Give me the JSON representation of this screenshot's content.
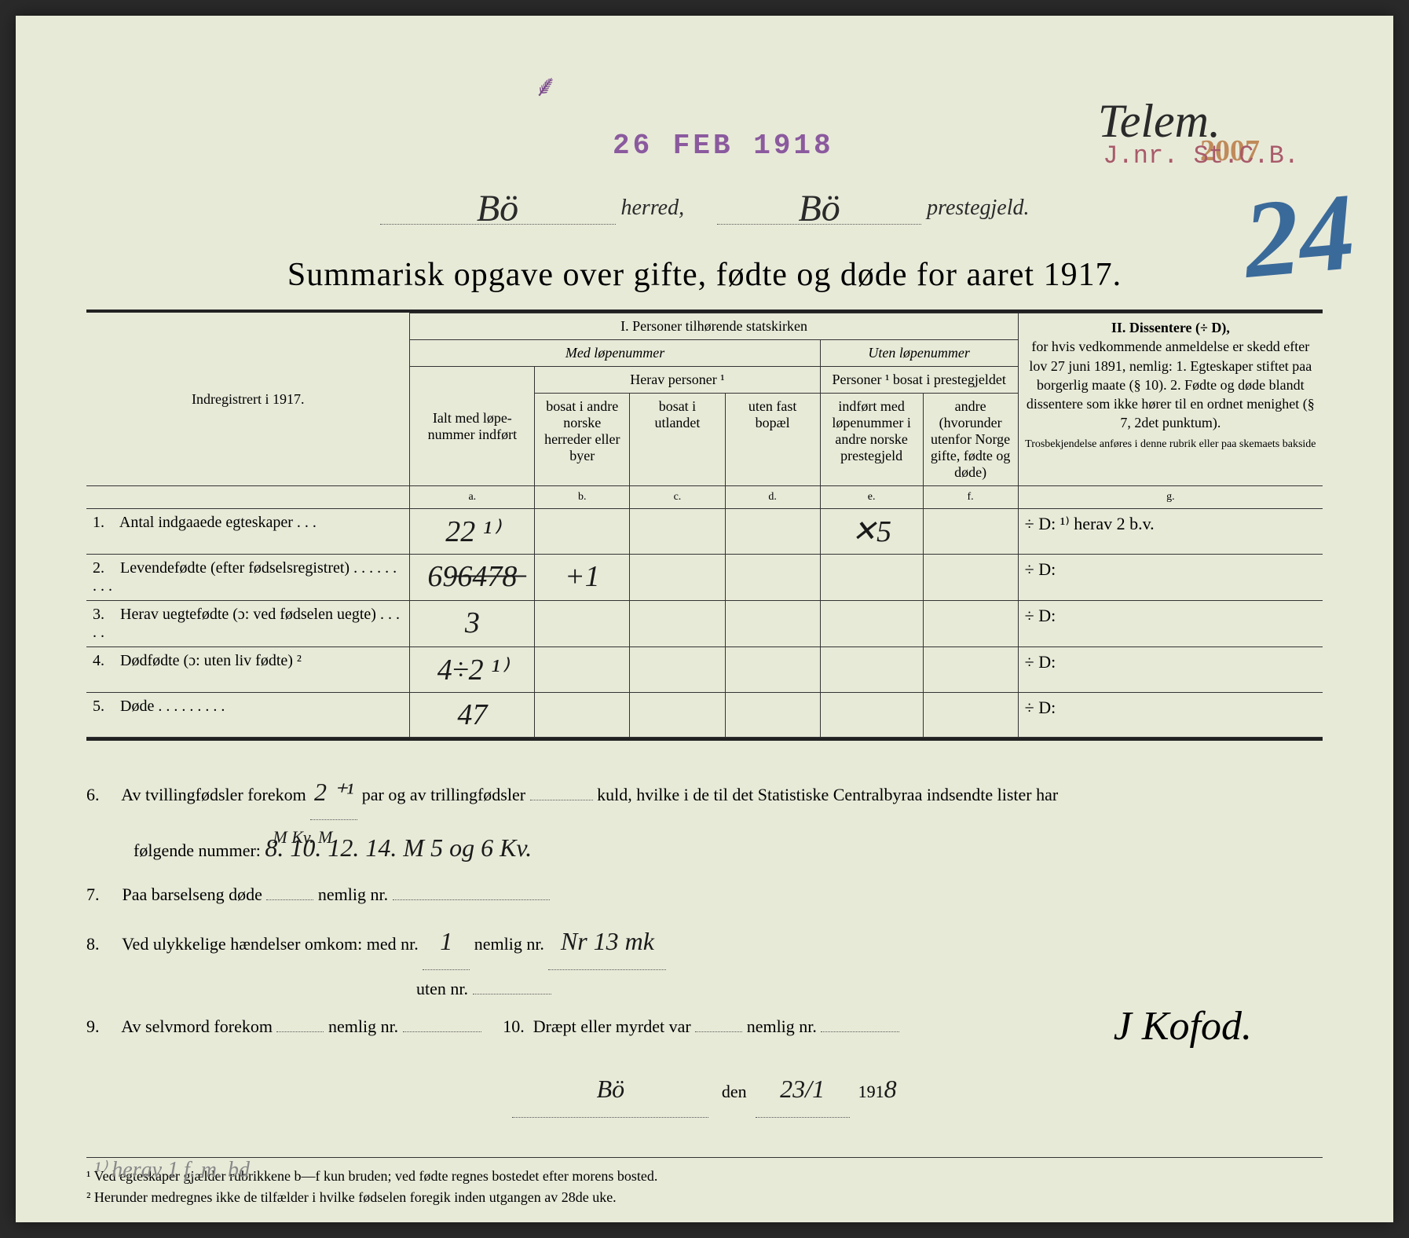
{
  "stamps": {
    "date": "26 FEB 1918",
    "jnr": "J.nr. St.C.B.",
    "num2007": "2007",
    "big_number": "24",
    "purple_mark": "⸙"
  },
  "handwriting": {
    "telem": "Telem.",
    "herred": "Bö",
    "prestegjeld": "Bö"
  },
  "header": {
    "herred_label": "herred,",
    "prestegjeld_label": "prestegjeld."
  },
  "title": "Summarisk opgave over gifte, fødte og døde for aaret 1917.",
  "table": {
    "section1": "I.  Personer tilhørende statskirken",
    "section2_title": "II.  Dissentere (÷ D),",
    "med_lope": "Med løpenummer",
    "uten_lope": "Uten løpenummer",
    "herav_personer": "Herav personer ¹",
    "personer_bosat": "Personer ¹ bosat i prestegjeldet",
    "indregistrert": "Indregistrert i 1917.",
    "ialt": "Ialt med løpe-nummer indført",
    "col_b": "bosat i andre norske herreder eller byer",
    "col_c": "bosat i utlandet",
    "col_d": "uten fast bopæl",
    "col_e": "indført med løpenummer i andre norske prestegjeld",
    "col_f": "andre (hvorunder utenfor Norge gifte, fødte og døde)",
    "dissentere_body": "for hvis vedkommende anmeldelse er skedd efter lov 27 juni 1891, nemlig: 1. Egteskaper stiftet paa borgerlig maate (§ 10). 2. Fødte og døde blandt dissentere som ikke hører til en ordnet menighet (§ 7, 2det punktum).",
    "dissentere_note": "Trosbekjendelse anføres i denne rubrik eller paa skemaets bakside",
    "letters": {
      "a": "a.",
      "b": "b.",
      "c": "c.",
      "d": "d.",
      "e": "e.",
      "f": "f.",
      "g": "g."
    },
    "rows": [
      {
        "n": "1.",
        "label": "Antal indgaaede egteskaper . . .",
        "a": "22 ¹⁾",
        "b": "",
        "c": "",
        "d": "",
        "e": "✕5",
        "f": "",
        "g": "÷ D:  ¹⁾ herav 2 b.v."
      },
      {
        "n": "2.",
        "label": "Levendefødte (efter fødselsregistret) . . . . . . . . .",
        "a": "69̶6̶4̶7̶8̶",
        "b": "+1",
        "c": "",
        "d": "",
        "e": "",
        "f": "",
        "g": "÷ D:"
      },
      {
        "n": "3.",
        "label": "Herav uegtefødte (ɔ: ved fødselen uegte) . . . . .",
        "a": "3",
        "b": "",
        "c": "",
        "d": "",
        "e": "",
        "f": "",
        "g": "÷ D:"
      },
      {
        "n": "4.",
        "label": "Dødfødte (ɔ: uten liv fødte) ²",
        "a": "4÷2 ¹⁾",
        "b": "",
        "c": "",
        "d": "",
        "e": "",
        "f": "",
        "g": "÷ D:"
      },
      {
        "n": "5.",
        "label": "Døde . . . . . . . . .",
        "a": "47",
        "b": "",
        "c": "",
        "d": "",
        "e": "",
        "f": "",
        "g": "÷ D:"
      }
    ]
  },
  "lower": {
    "line6a": "Av tvillingfødsler forekom",
    "line6_val1": "2 ⁺¹",
    "line6b": "par og av trillingfødsler",
    "line6c": "kuld, hvilke i de til det Statistiske Centralbyraa indsendte lister har",
    "line6d": "følgende nummer:",
    "line6_nums_header": "M   Kv.   M",
    "line6_nums": "8. 10.  12. 14.   M 5 og 6 Kv.",
    "line7": "Paa barselseng døde",
    "nemlig": "nemlig nr.",
    "line8a": "Ved ulykkelige hændelser omkom:  med nr.",
    "line8_val": "1",
    "line8_nemlig": "Nr 13 mk",
    "line8b": "uten nr.",
    "line9": "Av selvmord forekom",
    "line10": "Dræpt eller myrdet var",
    "place": "Bö",
    "den": "den",
    "date_val": "23/1",
    "year_prefix": "191",
    "year_suffix": "8",
    "signature": "J Kofod."
  },
  "footnotes": {
    "f1": "¹ Ved egteskaper gjælder rubrikkene b—f kun bruden; ved fødte regnes bostedet efter morens bosted.",
    "f2": "² Herunder medregnes ikke de tilfælder i hvilke fødselen foregik inden utgangen av 28de uke.",
    "pencil": "¹⁾ herav 1 f. m. bd"
  },
  "colors": {
    "paper": "#e8ead8",
    "ink": "#2a2a2a",
    "purple_stamp": "#8b5a9e",
    "red_stamp": "#a85a6a",
    "orange_stamp": "#c08a5a",
    "blue_crayon": "#3a6a9a",
    "pencil": "#888888"
  }
}
